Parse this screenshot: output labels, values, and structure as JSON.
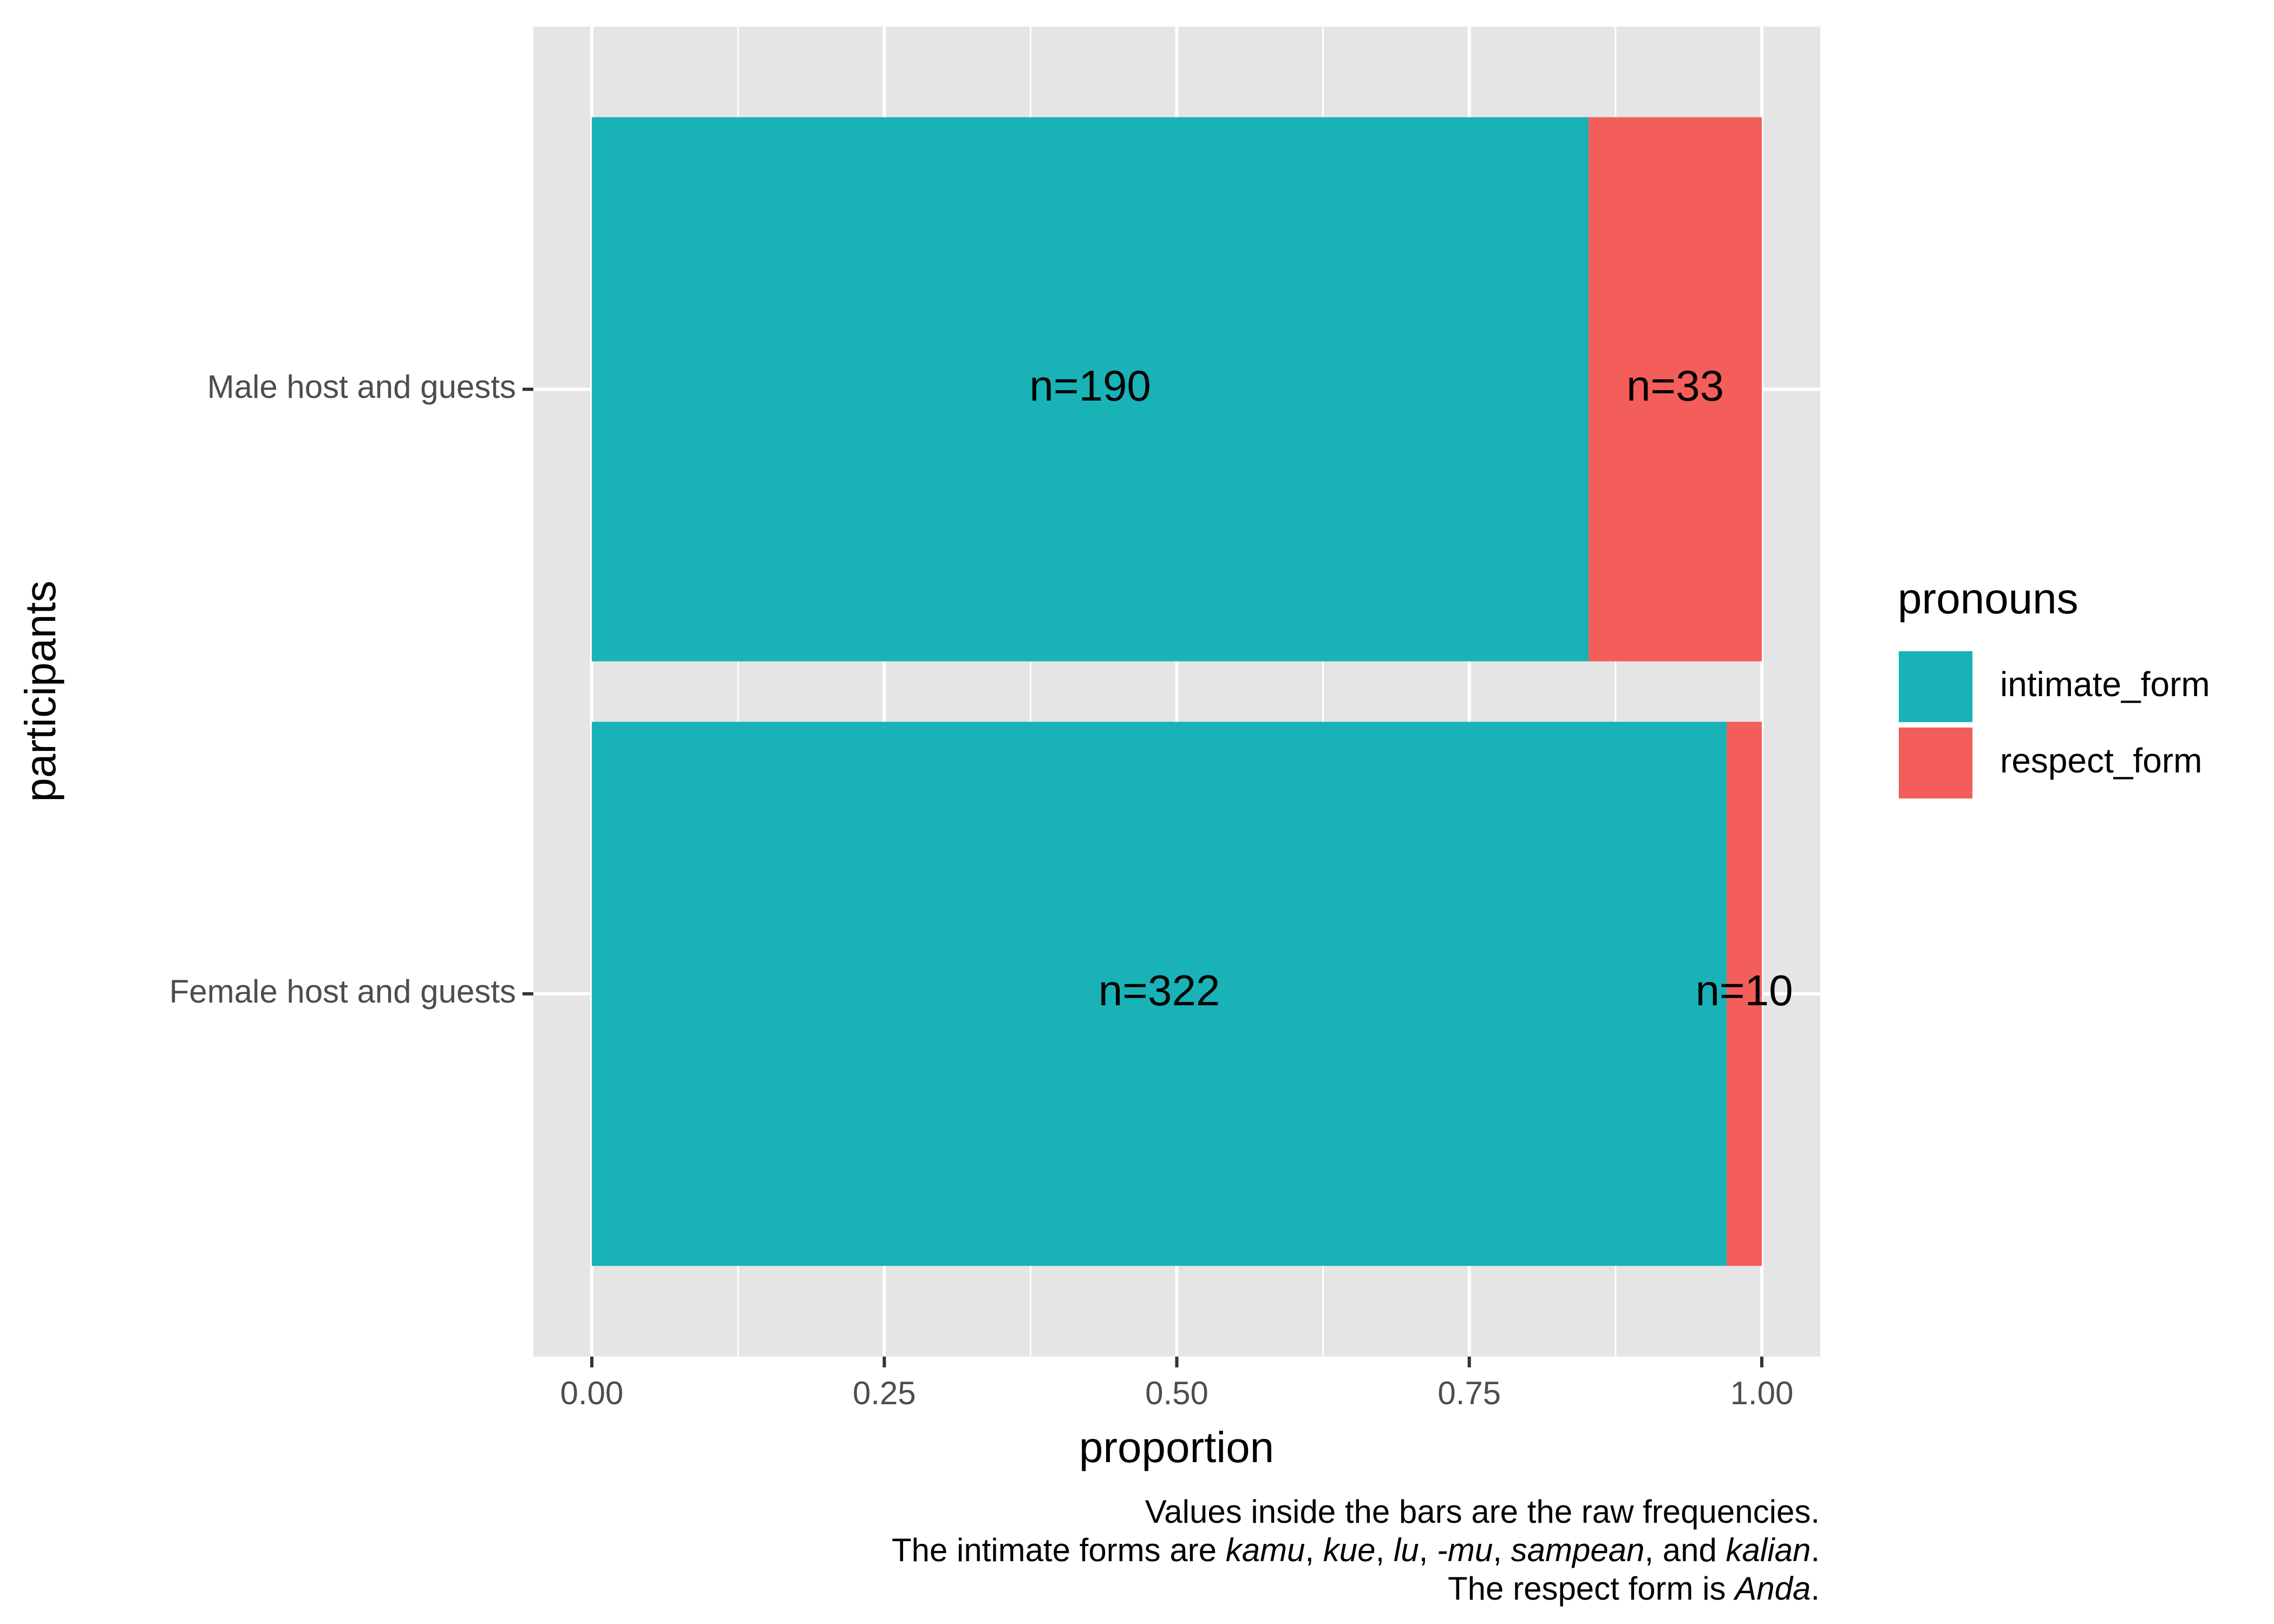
{
  "chart_data": {
    "type": "bar",
    "orientation": "horizontal",
    "stacked": true,
    "categories": [
      "Male host and guests",
      "Female host and guests"
    ],
    "series": [
      {
        "name": "intimate_form",
        "color": "#19b2b7",
        "values": [
          0.852,
          0.97
        ],
        "value_labels": [
          "n=190",
          "n=322"
        ]
      },
      {
        "name": "respect_form",
        "color": "#f35e5a",
        "values": [
          0.148,
          0.03
        ],
        "value_labels": [
          "n=33",
          "n=10"
        ]
      }
    ],
    "xlim": [
      -0.05,
      1.05
    ],
    "xticks": [
      {
        "value": 0,
        "label": "0.00"
      },
      {
        "value": 0.25,
        "label": "0.25"
      },
      {
        "value": 0.5,
        "label": "0.50"
      },
      {
        "value": 0.75,
        "label": "0.75"
      },
      {
        "value": 1,
        "label": "1.00"
      }
    ],
    "xticks_minor": [
      0.125,
      0.375,
      0.625,
      0.875
    ],
    "xlabel": "proportion",
    "ylabel": "participants",
    "legend_title": "pronouns",
    "legend": "right",
    "grid": true,
    "caption": [
      [
        {
          "text": "Values inside the bars are the raw frequencies.",
          "italic": false
        }
      ],
      [
        {
          "text": "The intimate forms are ",
          "italic": false
        },
        {
          "text": "kamu",
          "italic": true
        },
        {
          "text": ", ",
          "italic": false
        },
        {
          "text": "kue",
          "italic": true
        },
        {
          "text": ", ",
          "italic": false
        },
        {
          "text": "lu",
          "italic": true
        },
        {
          "text": ", ",
          "italic": false
        },
        {
          "text": "-mu",
          "italic": true
        },
        {
          "text": ", ",
          "italic": false
        },
        {
          "text": "sampean",
          "italic": true
        },
        {
          "text": ", and ",
          "italic": false
        },
        {
          "text": "kalian",
          "italic": true
        },
        {
          "text": ".",
          "italic": false
        }
      ],
      [
        {
          "text": "The respect form is ",
          "italic": false
        },
        {
          "text": "Anda",
          "italic": true
        },
        {
          "text": ".",
          "italic": false
        }
      ]
    ]
  }
}
